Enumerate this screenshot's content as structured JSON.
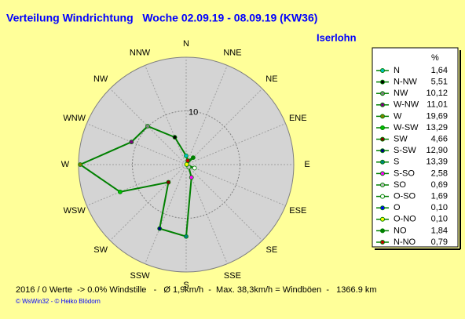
{
  "chart_data": {
    "type": "radar",
    "title": "Verteilung Windrichtung   Woche 02.09.19 - 08.09.19 (KW36)",
    "location": "Iserlohn",
    "categories": [
      "N",
      "NNW",
      "NW",
      "WNW",
      "W",
      "WSW",
      "SW",
      "SSW",
      "S",
      "SSE",
      "SE",
      "ESE",
      "E",
      "ENE",
      "NE",
      "NNE"
    ],
    "legend_header": "%",
    "series": [
      {
        "name": "Windrichtung",
        "color": "#008000",
        "values": [
          1.64,
          5.51,
          10.12,
          11.01,
          19.69,
          13.29,
          4.66,
          12.9,
          13.39,
          2.58,
          0.69,
          1.69,
          0.1,
          0.1,
          1.84,
          0.79
        ],
        "value_labels": [
          "1,64",
          "5,51",
          "10,12",
          "11,01",
          "19,69",
          "13,29",
          "4,66",
          "12,90",
          "13,39",
          "2,58",
          "0,69",
          "1,69",
          "0,10",
          "0,10",
          "1,84",
          "0,79"
        ],
        "legend_names": [
          "N",
          "N-NW",
          "NW",
          "W-NW",
          "W",
          "W-SW",
          "SW",
          "S-SW",
          "S",
          "S-SO",
          "SO",
          "O-SO",
          "O",
          "O-NO",
          "NO",
          "N-NO"
        ],
        "point_colors": [
          "#00c0c0",
          "#000000",
          "#808080",
          "#800080",
          "#808000",
          "#00c000",
          "#800000",
          "#000080",
          "#008080",
          "#ff00ff",
          "#c0c0c0",
          "#ffffff",
          "#0000ff",
          "#ffff00",
          "#008000",
          "#c00000"
        ]
      }
    ],
    "rlim": [
      0,
      20
    ],
    "rticks": [
      10
    ],
    "footer": "2016 / 0 Werte  -> 0.0% Windstille   -   Ø 1,9km/h  -  Max. 38,3km/h = Windböen  -   1366.9 km",
    "credits": "© WsWin32  -  © Heiko Blödorn"
  }
}
